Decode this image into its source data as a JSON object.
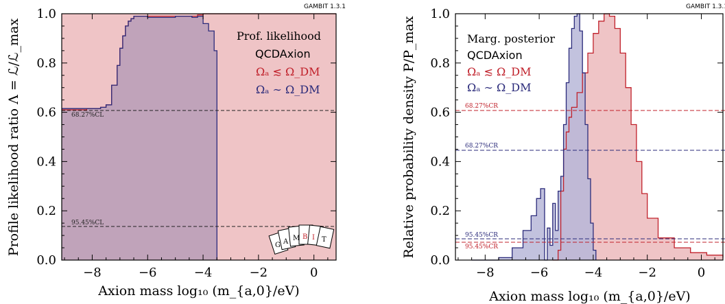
{
  "badge": "GAMBIT 1.3.1",
  "colors": {
    "red_line": "#c0202a",
    "red_fill": "#efc4c6",
    "blue_line": "#2a2a7a",
    "purple_fill": "#c0a3ba",
    "blue_fill": "#b7b7d8",
    "overlap_fill": "#c7a3b4",
    "dashed_black": "#222222",
    "dashed_red": "#c0202a",
    "dashed_blue": "#2a2a7a"
  },
  "chart_data": [
    {
      "type": "area",
      "title": "",
      "xlabel": "Axion mass log₁₀ (m_{a,0}/eV)",
      "ylabel": "Profile likelihood ratio Λ = ℒ/ℒ_max",
      "xlim": [
        -9.1,
        0.8
      ],
      "ylim": [
        0.0,
        1.0
      ],
      "xticks": [
        -8,
        -6,
        -4,
        -2,
        0
      ],
      "yticks": [
        0.0,
        0.2,
        0.4,
        0.6,
        0.8,
        1.0
      ],
      "legend": {
        "position": "top-right",
        "entries": [
          {
            "text": "Prof. likelihood",
            "color": "#000000"
          },
          {
            "text": "QCDAxion",
            "color": "#000000"
          },
          {
            "text": "Ωₐ ≲ Ω_DM",
            "color": "#c0202a"
          },
          {
            "text": "Ωₐ ∼ Ω_DM",
            "color": "#2a2a7a"
          }
        ]
      },
      "reference_lines": [
        {
          "label": "68.27%CL",
          "y": 0.606
        },
        {
          "label": "95.45%CL",
          "y": 0.135
        }
      ],
      "series": [
        {
          "name": "Ωₐ ≲ Ω_DM",
          "color": "#c0202a",
          "x": [
            -9.1,
            -8.2,
            -7.7,
            -7.5,
            -7.3,
            -7.1,
            -7.0,
            -6.9,
            -6.8,
            -6.7,
            -6.6,
            -6.5,
            -4.5,
            -4.2,
            -4.0,
            -3.8,
            -3.6,
            -3.4,
            0.8
          ],
          "values": [
            0.61,
            0.615,
            0.62,
            0.63,
            0.71,
            0.79,
            0.86,
            0.91,
            0.95,
            0.97,
            0.98,
            0.99,
            0.99,
            0.995,
            1.0,
            1.0,
            1.0,
            1.0,
            1.0
          ]
        },
        {
          "name": "Ωₐ ∼ Ω_DM",
          "color": "#2a2a7a",
          "x": [
            -9.1,
            -8.2,
            -7.7,
            -7.5,
            -7.3,
            -7.1,
            -7.0,
            -6.9,
            -6.8,
            -6.7,
            -6.6,
            -6.5,
            -6.0,
            -5.0,
            -4.4,
            -4.2,
            -4.0,
            -3.8,
            -3.6,
            -3.5
          ],
          "values": [
            0.615,
            0.615,
            0.62,
            0.63,
            0.71,
            0.79,
            0.86,
            0.91,
            0.95,
            0.97,
            0.98,
            0.99,
            0.985,
            0.99,
            0.985,
            0.99,
            0.96,
            0.93,
            0.85,
            0.0
          ]
        }
      ]
    },
    {
      "type": "area",
      "title": "",
      "xlabel": "Axion mass log₁₀ (m_{a,0}/eV)",
      "ylabel": "Relative probability density P/P_max",
      "xlim": [
        -9.1,
        0.8
      ],
      "ylim": [
        0.0,
        1.0
      ],
      "xticks": [
        -8,
        -6,
        -4,
        -2,
        0
      ],
      "yticks": [
        0.0,
        0.2,
        0.4,
        0.6,
        0.8,
        1.0
      ],
      "legend": {
        "position": "top-left",
        "entries": [
          {
            "text": "Marg. posterior",
            "color": "#000000"
          },
          {
            "text": "QCDAxion",
            "color": "#000000"
          },
          {
            "text": "Ωₐ ≲ Ω_DM",
            "color": "#c0202a"
          },
          {
            "text": "Ωₐ ∼ Ω_DM",
            "color": "#2a2a7a"
          }
        ]
      },
      "reference_lines": [
        {
          "label": "68.27%CR",
          "y": 0.605,
          "color": "#c0202a"
        },
        {
          "label": "68.27%CR",
          "y": 0.445,
          "color": "#2a2a7a"
        },
        {
          "label": "95.45%CR",
          "y": 0.085,
          "color": "#2a2a7a"
        },
        {
          "label": "95.45%CR",
          "y": 0.07,
          "color": "#c0202a"
        }
      ],
      "series": [
        {
          "name": "Ωₐ ∼ Ω_DM",
          "color": "#2a2a7a",
          "x": [
            -8.5,
            -7.5,
            -7.0,
            -6.6,
            -6.3,
            -6.1,
            -5.95,
            -5.8,
            -5.7,
            -5.6,
            -5.5,
            -5.4,
            -5.3,
            -5.2,
            -5.1,
            -5.0,
            -4.9,
            -4.8,
            -4.7,
            -4.6,
            -4.5,
            -4.4,
            -4.3,
            -4.2,
            -4.1,
            -4.0,
            -3.9
          ],
          "values": [
            0.0,
            0.01,
            0.05,
            0.12,
            0.18,
            0.25,
            0.29,
            0.0,
            0.13,
            0.06,
            0.23,
            0.12,
            0.28,
            0.34,
            0.55,
            0.72,
            0.86,
            0.94,
            0.99,
            1.0,
            0.93,
            0.76,
            0.55,
            0.33,
            0.15,
            0.04,
            0.0
          ]
        },
        {
          "name": "Ωₐ ≲ Ω_DM",
          "color": "#c0202a",
          "x": [
            -5.5,
            -5.3,
            -5.2,
            -5.1,
            -5.0,
            -4.9,
            -4.8,
            -4.6,
            -4.4,
            -4.2,
            -4.0,
            -3.8,
            -3.6,
            -3.4,
            -3.2,
            -3.0,
            -2.8,
            -2.6,
            -2.4,
            -2.2,
            -2.0,
            -1.6,
            -1.0,
            -0.4,
            0.2,
            0.8
          ],
          "values": [
            0.0,
            0.04,
            0.28,
            0.45,
            0.52,
            0.58,
            0.62,
            0.68,
            0.76,
            0.84,
            0.92,
            0.97,
            1.0,
            0.99,
            0.94,
            0.84,
            0.7,
            0.55,
            0.4,
            0.27,
            0.17,
            0.09,
            0.05,
            0.03,
            0.02,
            0.01
          ]
        }
      ]
    }
  ]
}
